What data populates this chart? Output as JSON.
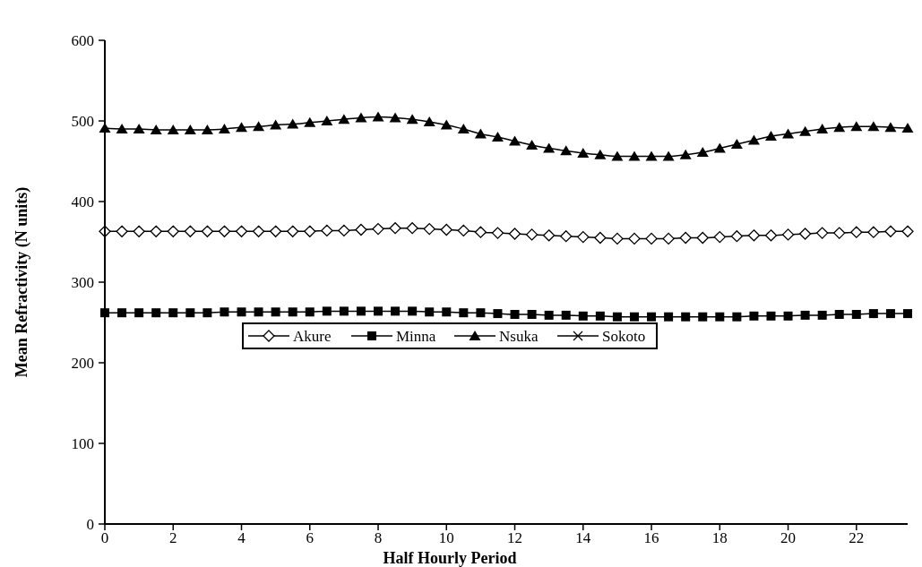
{
  "chart_data": {
    "type": "line",
    "xlabel": "Half Hourly Period",
    "ylabel": "Mean Refractivity (N units)",
    "x": [
      0,
      0.5,
      1,
      1.5,
      2,
      2.5,
      3,
      3.5,
      4,
      4.5,
      5,
      5.5,
      6,
      6.5,
      7,
      7.5,
      8,
      8.5,
      9,
      9.5,
      10,
      10.5,
      11,
      11.5,
      12,
      12.5,
      13,
      13.5,
      14,
      14.5,
      15,
      15.5,
      16,
      16.5,
      17,
      17.5,
      18,
      18.5,
      19,
      19.5,
      20,
      20.5,
      21,
      21.5,
      22,
      22.5,
      23,
      23.5
    ],
    "series": [
      {
        "name": "Akure",
        "color": "#000000",
        "marker": "diamond",
        "values": [
          363,
          363,
          363,
          363,
          363,
          363,
          363,
          363,
          363,
          363,
          363,
          363,
          363,
          364,
          364,
          365,
          366,
          367,
          367,
          366,
          365,
          364,
          362,
          361,
          360,
          359,
          358,
          357,
          356,
          355,
          354,
          354,
          354,
          354,
          355,
          355,
          356,
          357,
          358,
          358,
          359,
          360,
          361,
          361,
          362,
          362,
          363,
          363
        ]
      },
      {
        "name": "Minna",
        "color": "#000000",
        "marker": "square",
        "values": [
          262,
          262,
          262,
          262,
          262,
          262,
          262,
          263,
          263,
          263,
          263,
          263,
          263,
          264,
          264,
          264,
          264,
          264,
          264,
          263,
          263,
          262,
          262,
          261,
          260,
          260,
          259,
          259,
          258,
          258,
          257,
          257,
          257,
          257,
          257,
          257,
          257,
          257,
          258,
          258,
          258,
          259,
          259,
          260,
          260,
          261,
          261,
          261
        ]
      },
      {
        "name": "Nsuka",
        "color": "#000000",
        "marker": "triangle",
        "values": [
          491,
          490,
          490,
          489,
          489,
          489,
          489,
          490,
          492,
          493,
          495,
          496,
          498,
          500,
          502,
          504,
          505,
          504,
          502,
          499,
          495,
          490,
          484,
          480,
          475,
          470,
          466,
          463,
          460,
          458,
          456,
          456,
          456,
          456,
          458,
          461,
          466,
          471,
          476,
          481,
          484,
          487,
          490,
          492,
          493,
          493,
          492,
          491
        ]
      },
      {
        "name": "Sokoto",
        "color": "#000000",
        "marker": "cross",
        "values": [
          null,
          null,
          null,
          null,
          null,
          null,
          null,
          null,
          null,
          null,
          null,
          null,
          null,
          null,
          null,
          null,
          null,
          null,
          null,
          null,
          null,
          null,
          null,
          null,
          null,
          null,
          null,
          null,
          null,
          null,
          null,
          null,
          null,
          null,
          null,
          null,
          null,
          null,
          null,
          null,
          null,
          null,
          null,
          null,
          null,
          null,
          null,
          null
        ]
      }
    ],
    "xlim": [
      0,
      23.5
    ],
    "xticks": [
      0,
      2,
      4,
      6,
      8,
      10,
      12,
      14,
      16,
      18,
      20,
      22
    ],
    "ylim": [
      0,
      600
    ],
    "yticks": [
      0,
      100,
      200,
      300,
      400,
      500,
      600
    ],
    "grid": false,
    "legend": "center",
    "line_style": "solid"
  }
}
